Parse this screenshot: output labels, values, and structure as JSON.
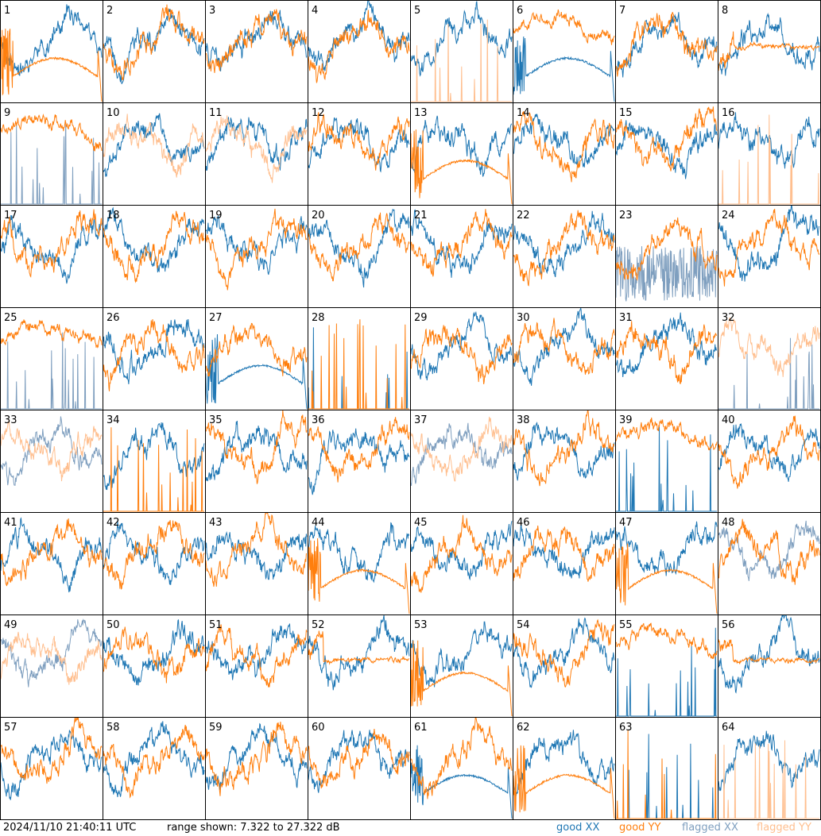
{
  "footer": {
    "timestamp": "2024/11/10 21:40:11 UTC",
    "range_text": "range shown: 7.322 to 27.322 dB",
    "legend": [
      {
        "label": "good XX",
        "color": "#1f77b4"
      },
      {
        "label": "good YY",
        "color": "#ff7f0e"
      },
      {
        "label": "flagged XX",
        "color": "#7f9fbf"
      },
      {
        "label": "flagged YY",
        "color": "#ffbf8f"
      }
    ]
  },
  "chart_data": {
    "type": "line",
    "grid_rows": 8,
    "grid_cols": 8,
    "ylim": [
      7.322,
      27.322
    ],
    "y_unit": "dB",
    "colors": {
      "good_xx": "#1f77b4",
      "good_yy": "#ff7f0e",
      "flagged_xx": "#7f9fbf",
      "flagged_yy": "#ffbf8f"
    },
    "panels": [
      {
        "label": "1",
        "xx": "good",
        "yy": "good",
        "xx_shape": "normal",
        "yy_shape": "sag"
      },
      {
        "label": "2",
        "xx": "good",
        "yy": "good",
        "xx_shape": "normal",
        "yy_shape": "normal"
      },
      {
        "label": "3",
        "xx": "good",
        "yy": "good",
        "xx_shape": "normal",
        "yy_shape": "normal"
      },
      {
        "label": "4",
        "xx": "good",
        "yy": "good",
        "xx_shape": "normal",
        "yy_shape": "normal"
      },
      {
        "label": "5",
        "xx": "good",
        "yy": "flagged",
        "xx_shape": "normal",
        "yy_shape": "spikes"
      },
      {
        "label": "6",
        "xx": "good",
        "yy": "good",
        "xx_shape": "sag",
        "yy_shape": "high"
      },
      {
        "label": "7",
        "xx": "good",
        "yy": "good",
        "xx_shape": "normal",
        "yy_shape": "normal"
      },
      {
        "label": "8",
        "xx": "good",
        "yy": "good",
        "xx_shape": "normal",
        "yy_shape": "flat"
      },
      {
        "label": "9",
        "xx": "flagged",
        "yy": "good",
        "xx_shape": "spikes",
        "yy_shape": "high"
      },
      {
        "label": "10",
        "xx": "good",
        "yy": "flagged",
        "xx_shape": "normal",
        "yy_shape": "normal"
      },
      {
        "label": "11",
        "xx": "good",
        "yy": "flagged",
        "xx_shape": "normal",
        "yy_shape": "normal"
      },
      {
        "label": "12",
        "xx": "good",
        "yy": "good",
        "xx_shape": "normal",
        "yy_shape": "normal"
      },
      {
        "label": "13",
        "xx": "good",
        "yy": "good",
        "xx_shape": "normal",
        "yy_shape": "sag"
      },
      {
        "label": "14",
        "xx": "good",
        "yy": "good",
        "xx_shape": "normal",
        "yy_shape": "normal"
      },
      {
        "label": "15",
        "xx": "good",
        "yy": "good",
        "xx_shape": "normal",
        "yy_shape": "normal"
      },
      {
        "label": "16",
        "xx": "good",
        "yy": "flagged",
        "xx_shape": "normal",
        "yy_shape": "spikes"
      },
      {
        "label": "17",
        "xx": "good",
        "yy": "good",
        "xx_shape": "normal",
        "yy_shape": "normal"
      },
      {
        "label": "18",
        "xx": "good",
        "yy": "good",
        "xx_shape": "normal",
        "yy_shape": "normal"
      },
      {
        "label": "19",
        "xx": "good",
        "yy": "good",
        "xx_shape": "normal",
        "yy_shape": "normal"
      },
      {
        "label": "20",
        "xx": "good",
        "yy": "good",
        "xx_shape": "normal",
        "yy_shape": "normal"
      },
      {
        "label": "21",
        "xx": "good",
        "yy": "good",
        "xx_shape": "normal",
        "yy_shape": "normal"
      },
      {
        "label": "22",
        "xx": "good",
        "yy": "good",
        "xx_shape": "normal",
        "yy_shape": "normal"
      },
      {
        "label": "23",
        "xx": "flagged",
        "yy": "good",
        "xx_shape": "noisy_low",
        "yy_shape": "normal"
      },
      {
        "label": "24",
        "xx": "good",
        "yy": "good",
        "xx_shape": "normal",
        "yy_shape": "normal"
      },
      {
        "label": "25",
        "xx": "flagged",
        "yy": "good",
        "xx_shape": "spikes",
        "yy_shape": "high"
      },
      {
        "label": "26",
        "xx": "good",
        "yy": "good",
        "xx_shape": "normal",
        "yy_shape": "normal"
      },
      {
        "label": "27",
        "xx": "good",
        "yy": "good",
        "xx_shape": "sag",
        "yy_shape": "normal"
      },
      {
        "label": "28",
        "xx": "good",
        "yy": "good",
        "xx_shape": "spikes",
        "yy_shape": "spikes"
      },
      {
        "label": "29",
        "xx": "good",
        "yy": "good",
        "xx_shape": "normal",
        "yy_shape": "normal"
      },
      {
        "label": "30",
        "xx": "good",
        "yy": "good",
        "xx_shape": "normal",
        "yy_shape": "normal"
      },
      {
        "label": "31",
        "xx": "good",
        "yy": "good",
        "xx_shape": "normal",
        "yy_shape": "normal"
      },
      {
        "label": "32",
        "xx": "flagged",
        "yy": "flagged",
        "xx_shape": "spikes",
        "yy_shape": "normal"
      },
      {
        "label": "33",
        "xx": "flagged",
        "yy": "flagged",
        "xx_shape": "normal",
        "yy_shape": "normal"
      },
      {
        "label": "34",
        "xx": "good",
        "yy": "good",
        "xx_shape": "normal",
        "yy_shape": "spikes"
      },
      {
        "label": "35",
        "xx": "good",
        "yy": "good",
        "xx_shape": "normal",
        "yy_shape": "normal"
      },
      {
        "label": "36",
        "xx": "good",
        "yy": "good",
        "xx_shape": "normal",
        "yy_shape": "normal"
      },
      {
        "label": "37",
        "xx": "flagged",
        "yy": "flagged",
        "xx_shape": "normal",
        "yy_shape": "normal"
      },
      {
        "label": "38",
        "xx": "good",
        "yy": "good",
        "xx_shape": "normal",
        "yy_shape": "normal"
      },
      {
        "label": "39",
        "xx": "good",
        "yy": "good",
        "xx_shape": "spikes",
        "yy_shape": "high"
      },
      {
        "label": "40",
        "xx": "good",
        "yy": "good",
        "xx_shape": "normal",
        "yy_shape": "normal"
      },
      {
        "label": "41",
        "xx": "good",
        "yy": "good",
        "xx_shape": "normal",
        "yy_shape": "normal"
      },
      {
        "label": "42",
        "xx": "good",
        "yy": "good",
        "xx_shape": "normal",
        "yy_shape": "normal"
      },
      {
        "label": "43",
        "xx": "good",
        "yy": "good",
        "xx_shape": "normal",
        "yy_shape": "normal"
      },
      {
        "label": "44",
        "xx": "good",
        "yy": "good",
        "xx_shape": "normal",
        "yy_shape": "sag"
      },
      {
        "label": "45",
        "xx": "good",
        "yy": "good",
        "xx_shape": "normal",
        "yy_shape": "normal"
      },
      {
        "label": "46",
        "xx": "good",
        "yy": "good",
        "xx_shape": "normal",
        "yy_shape": "normal"
      },
      {
        "label": "47",
        "xx": "good",
        "yy": "good",
        "xx_shape": "normal",
        "yy_shape": "sag"
      },
      {
        "label": "48",
        "xx": "flagged",
        "yy": "good",
        "xx_shape": "normal",
        "yy_shape": "normal"
      },
      {
        "label": "49",
        "xx": "flagged",
        "yy": "flagged",
        "xx_shape": "normal",
        "yy_shape": "normal"
      },
      {
        "label": "50",
        "xx": "good",
        "yy": "good",
        "xx_shape": "normal",
        "yy_shape": "normal"
      },
      {
        "label": "51",
        "xx": "good",
        "yy": "good",
        "xx_shape": "normal",
        "yy_shape": "normal"
      },
      {
        "label": "52",
        "xx": "good",
        "yy": "good",
        "xx_shape": "normal",
        "yy_shape": "flat"
      },
      {
        "label": "53",
        "xx": "good",
        "yy": "good",
        "xx_shape": "normal",
        "yy_shape": "sag"
      },
      {
        "label": "54",
        "xx": "good",
        "yy": "good",
        "xx_shape": "normal",
        "yy_shape": "normal"
      },
      {
        "label": "55",
        "xx": "good",
        "yy": "good",
        "xx_shape": "spikes",
        "yy_shape": "high"
      },
      {
        "label": "56",
        "xx": "good",
        "yy": "good",
        "xx_shape": "normal",
        "yy_shape": "flat"
      },
      {
        "label": "57",
        "xx": "good",
        "yy": "good",
        "xx_shape": "normal",
        "yy_shape": "normal"
      },
      {
        "label": "58",
        "xx": "good",
        "yy": "good",
        "xx_shape": "normal",
        "yy_shape": "normal"
      },
      {
        "label": "59",
        "xx": "good",
        "yy": "good",
        "xx_shape": "normal",
        "yy_shape": "normal"
      },
      {
        "label": "60",
        "xx": "good",
        "yy": "good",
        "xx_shape": "normal",
        "yy_shape": "normal"
      },
      {
        "label": "61",
        "xx": "good",
        "yy": "good",
        "xx_shape": "sag",
        "yy_shape": "normal"
      },
      {
        "label": "62",
        "xx": "good",
        "yy": "good",
        "xx_shape": "normal",
        "yy_shape": "sag"
      },
      {
        "label": "63",
        "xx": "good",
        "yy": "good",
        "xx_shape": "spikes",
        "yy_shape": "spikes"
      },
      {
        "label": "64",
        "xx": "good",
        "yy": "flagged",
        "xx_shape": "normal",
        "yy_shape": "spikes"
      }
    ]
  }
}
